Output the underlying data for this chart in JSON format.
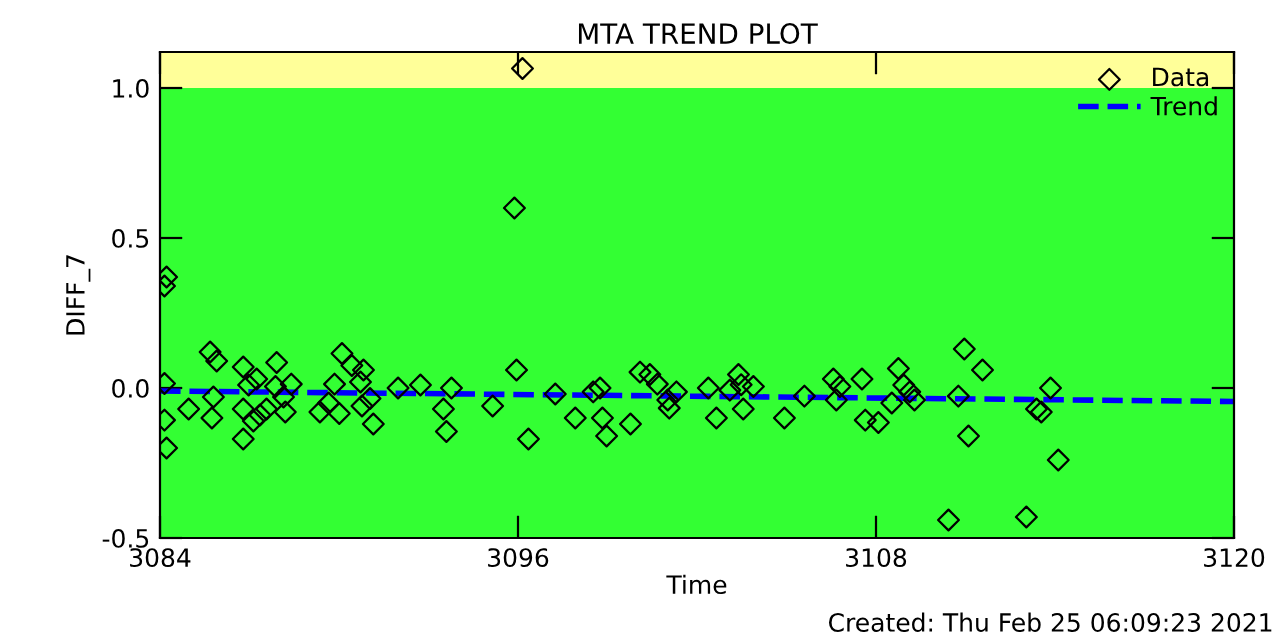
{
  "chart_data": {
    "type": "scatter",
    "title": "MTA TREND PLOT",
    "xlabel": "Time",
    "ylabel": "DIFF_7",
    "xlim": [
      3084,
      3120
    ],
    "xticks": [
      3084,
      3096,
      3108,
      3120
    ],
    "ylim": [
      -0.5,
      1.12
    ],
    "yticks": [
      {
        "value": -0.5,
        "label": "-0.5"
      },
      {
        "value": 0,
        "label": "0.0"
      },
      {
        "value": 0.5,
        "label": "0.5"
      },
      {
        "value": 1.0,
        "label": "1.0"
      }
    ],
    "bands": [
      {
        "axis": "y",
        "from": 1.0,
        "to": 1.12,
        "color": "#ffff99"
      },
      {
        "axis": "y",
        "from": -0.5,
        "to": 1.0,
        "color": "#33ff33"
      }
    ],
    "series": [
      {
        "name": "Data",
        "type": "scatter",
        "color": "#000000",
        "marker": "diamond",
        "x": [
          3084.22,
          3084.15,
          3084.15,
          3084.15,
          3084.22,
          3084.96,
          3085.68,
          3085.9,
          3085.74,
          3085.79,
          3086.79,
          3086.97,
          3086.79,
          3086.79,
          3087.24,
          3087.13,
          3087.35,
          3087.57,
          3087.91,
          3087.87,
          3088.14,
          3088.4,
          3088.2,
          3089.36,
          3089.65,
          3089.85,
          3090.01,
          3090.1,
          3090.43,
          3090.82,
          3090.72,
          3090.77,
          3091.04,
          3091.15,
          3091.98,
          3092.73,
          3093.5,
          3093.6,
          3093.77,
          3095.15,
          3095.95,
          3096.35,
          3097.25,
          3097.92,
          3098.52,
          3098.75,
          3098.83,
          3098.97,
          3099.77,
          3100.09,
          3100.42,
          3100.67,
          3101.02,
          3101.07,
          3101.31,
          3102.38,
          3102.65,
          3103.1,
          3103.39,
          3103.48,
          3103.89,
          3103.55,
          3104.93,
          3105.6,
          3106.57,
          3106.79,
          3106.67,
          3107.53,
          3107.64,
          3108.08,
          3108.75,
          3108.93,
          3109.13,
          3108.53,
          3109.29,
          3110.96,
          3111.57,
          3110.76,
          3111.1,
          3110.43,
          3113.04,
          3113.85,
          3113.38,
          3113.54,
          3114.11,
          3096.15,
          3095.88
        ],
        "values": [
          0.37,
          0.34,
          0.015,
          -0.107,
          -0.2,
          -0.07,
          0.12,
          0.09,
          -0.1,
          -0.03,
          0.07,
          0.01,
          -0.07,
          -0.17,
          0.03,
          -0.11,
          -0.09,
          -0.07,
          0.085,
          0.005,
          -0.03,
          0.013,
          -0.08,
          -0.08,
          -0.05,
          0.013,
          -0.085,
          0.115,
          0.075,
          0.06,
          0.02,
          -0.06,
          -0.035,
          -0.12,
          0,
          0.01,
          -0.07,
          -0.145,
          0,
          -0.06,
          0.06,
          -0.17,
          -0.02,
          -0.1,
          -0.013,
          0,
          -0.1,
          -0.16,
          -0.12,
          0.053,
          0.045,
          0.013,
          -0.04,
          -0.067,
          -0.013,
          0,
          -0.1,
          -0.007,
          0.045,
          0.011,
          0.005,
          -0.07,
          -0.1,
          -0.027,
          0.03,
          0.005,
          -0.04,
          0.03,
          -0.107,
          -0.115,
          0.065,
          0.01,
          -0.013,
          -0.05,
          -0.04,
          0.13,
          0.06,
          -0.027,
          -0.16,
          -0.44,
          -0.43,
          0,
          -0.07,
          -0.08,
          -0.24,
          1.065,
          0.6
        ]
      },
      {
        "name": "Trend",
        "type": "line",
        "color": "#0000ff",
        "line_style": "dashed",
        "x": [
          3084,
          3120
        ],
        "values": [
          -0.01,
          -0.045
        ]
      }
    ],
    "legend": "top right",
    "annotations": [
      "Created: Thu Feb 25 06:09:23 2021"
    ]
  }
}
